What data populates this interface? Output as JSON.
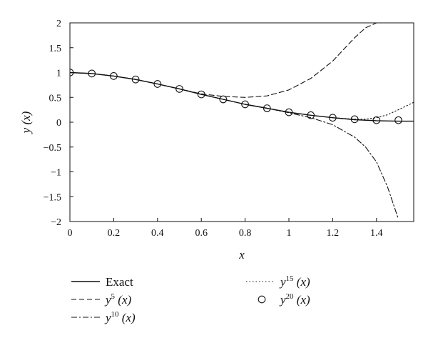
{
  "chart_data": {
    "type": "line",
    "xlabel": "x",
    "ylabel": "y (x)",
    "xlim": [
      0,
      1.57
    ],
    "ylim": [
      -2,
      2
    ],
    "xticks": [
      "0",
      "0.2",
      "0.4",
      "0.6",
      "0.8",
      "1",
      "1.2",
      "1.4"
    ],
    "yticks": [
      "2",
      "1.5",
      "1",
      "0.5",
      "0",
      "−0.5",
      "−1",
      "−1.5",
      "−2"
    ],
    "grid": false,
    "legend_position": "below",
    "series": [
      {
        "name": "Exact",
        "style": "solid",
        "x": [
          0,
          0.1,
          0.2,
          0.3,
          0.4,
          0.5,
          0.6,
          0.7,
          0.8,
          0.9,
          1.0,
          1.1,
          1.2,
          1.3,
          1.4,
          1.5,
          1.57
        ],
        "y": [
          1.0,
          0.98,
          0.93,
          0.86,
          0.77,
          0.67,
          0.56,
          0.46,
          0.36,
          0.28,
          0.2,
          0.14,
          0.09,
          0.05,
          0.03,
          0.02,
          0.02
        ]
      },
      {
        "name": "y⁵ (x)",
        "label_base": "y",
        "label_sup": "5",
        "label_arg": " (x)",
        "style": "dashed",
        "x": [
          0,
          0.1,
          0.2,
          0.3,
          0.4,
          0.5,
          0.6,
          0.7,
          0.8,
          0.9,
          1.0,
          1.1,
          1.2,
          1.3,
          1.35,
          1.4
        ],
        "y": [
          1.0,
          0.98,
          0.93,
          0.86,
          0.77,
          0.67,
          0.57,
          0.52,
          0.5,
          0.53,
          0.65,
          0.88,
          1.23,
          1.7,
          1.9,
          2.0
        ]
      },
      {
        "name": "y¹⁰ (x)",
        "label_base": "y",
        "label_sup": "10",
        "label_arg": " (x)",
        "style": "dashdot",
        "x": [
          0,
          0.1,
          0.2,
          0.3,
          0.4,
          0.5,
          0.6,
          0.7,
          0.8,
          0.9,
          1.0,
          1.1,
          1.2,
          1.3,
          1.35,
          1.4,
          1.45,
          1.5
        ],
        "y": [
          1.0,
          0.98,
          0.93,
          0.86,
          0.77,
          0.67,
          0.56,
          0.46,
          0.36,
          0.28,
          0.19,
          0.09,
          -0.05,
          -0.3,
          -0.5,
          -0.8,
          -1.3,
          -1.95
        ]
      },
      {
        "name": "y¹⁵ (x)",
        "label_base": "y",
        "label_sup": "15",
        "label_arg": " (x)",
        "style": "dotted",
        "x": [
          0,
          0.1,
          0.2,
          0.3,
          0.4,
          0.5,
          0.6,
          0.7,
          0.8,
          0.9,
          1.0,
          1.1,
          1.2,
          1.3,
          1.35,
          1.4,
          1.45,
          1.5,
          1.57
        ],
        "y": [
          1.0,
          0.98,
          0.93,
          0.86,
          0.77,
          0.67,
          0.56,
          0.46,
          0.36,
          0.28,
          0.2,
          0.14,
          0.09,
          0.06,
          0.06,
          0.09,
          0.15,
          0.25,
          0.4
        ]
      },
      {
        "name": "y²⁰ (x)",
        "label_base": "y",
        "label_sup": "20",
        "label_arg": " (x)",
        "style": "circle-markers",
        "x": [
          0,
          0.1,
          0.2,
          0.3,
          0.4,
          0.5,
          0.6,
          0.7,
          0.8,
          0.9,
          1.0,
          1.1,
          1.2,
          1.3,
          1.4,
          1.5
        ],
        "y": [
          1.0,
          0.98,
          0.93,
          0.86,
          0.77,
          0.67,
          0.56,
          0.46,
          0.36,
          0.28,
          0.2,
          0.14,
          0.09,
          0.06,
          0.04,
          0.04
        ]
      }
    ]
  }
}
